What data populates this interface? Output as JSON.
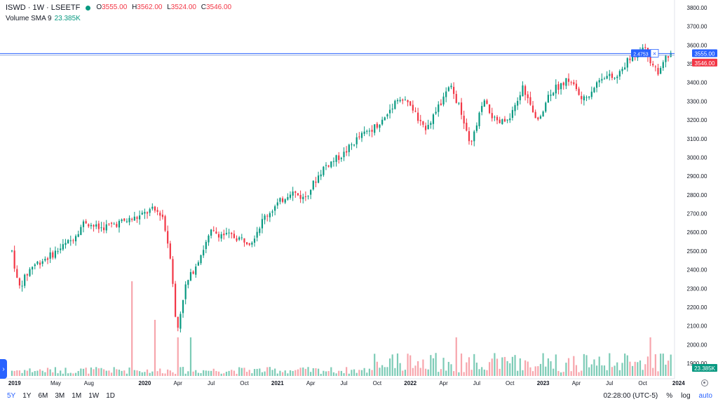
{
  "legend": {
    "symbol": "ISWD · 1W · LSEETF",
    "open_label": "O",
    "open": "3555.00",
    "high_label": "H",
    "high": "3562.00",
    "low_label": "L",
    "low": "3524.00",
    "close_label": "C",
    "close": "3546.00",
    "indicator": "Volume SMA 9",
    "indicator_value": "23.385K"
  },
  "chart_data": {
    "type": "candlestick",
    "y_ticks": [
      1900,
      2000,
      2100,
      2200,
      2300,
      2400,
      2500,
      2600,
      2700,
      2800,
      2900,
      3000,
      3100,
      3200,
      3300,
      3400,
      3500,
      3600,
      3700,
      3800
    ],
    "x_labels": [
      "2019",
      "May",
      "Aug",
      "2020",
      "Apr",
      "Jul",
      "Oct",
      "2021",
      "Apr",
      "Jul",
      "Oct",
      "2022",
      "Apr",
      "Jul",
      "Oct",
      "2023",
      "Apr",
      "Jul",
      "Oct",
      "2024"
    ],
    "ylim": [
      1800,
      3820
    ],
    "price_series_anchors": [
      [
        2019.0,
        2500
      ],
      [
        2019.05,
        2300
      ],
      [
        2019.15,
        2420
      ],
      [
        2019.3,
        2480
      ],
      [
        2019.45,
        2560
      ],
      [
        2019.55,
        2660
      ],
      [
        2019.65,
        2620
      ],
      [
        2019.8,
        2650
      ],
      [
        2019.95,
        2680
      ],
      [
        2020.05,
        2720
      ],
      [
        2020.13,
        2700
      ],
      [
        2020.2,
        2450
      ],
      [
        2020.24,
        2050
      ],
      [
        2020.3,
        2300
      ],
      [
        2020.4,
        2450
      ],
      [
        2020.5,
        2600
      ],
      [
        2020.65,
        2580
      ],
      [
        2020.8,
        2550
      ],
      [
        2020.9,
        2680
      ],
      [
        2021.0,
        2750
      ],
      [
        2021.1,
        2820
      ],
      [
        2021.2,
        2780
      ],
      [
        2021.35,
        2950
      ],
      [
        2021.5,
        3020
      ],
      [
        2021.6,
        3100
      ],
      [
        2021.7,
        3150
      ],
      [
        2021.8,
        3200
      ],
      [
        2021.9,
        3320
      ],
      [
        2022.0,
        3280
      ],
      [
        2022.1,
        3150
      ],
      [
        2022.2,
        3250
      ],
      [
        2022.3,
        3380
      ],
      [
        2022.38,
        3250
      ],
      [
        2022.45,
        3050
      ],
      [
        2022.55,
        3300
      ],
      [
        2022.65,
        3180
      ],
      [
        2022.75,
        3200
      ],
      [
        2022.85,
        3380
      ],
      [
        2022.95,
        3180
      ],
      [
        2023.05,
        3350
      ],
      [
        2023.2,
        3420
      ],
      [
        2023.3,
        3300
      ],
      [
        2023.45,
        3440
      ],
      [
        2023.55,
        3420
      ],
      [
        2023.62,
        3500
      ],
      [
        2023.7,
        3560
      ],
      [
        2023.75,
        3600
      ],
      [
        2023.82,
        3500
      ],
      [
        2023.88,
        3450
      ],
      [
        2023.92,
        3530
      ],
      [
        2023.97,
        3546
      ]
    ],
    "volume_spikes": [
      {
        "date": 2019.9,
        "volume_label": "very high",
        "color": "red"
      },
      {
        "date": 2020.07,
        "volume_label": "high",
        "color": "red"
      },
      {
        "date": 2020.25,
        "volume_label": "medium",
        "color": "red"
      },
      {
        "date": 2020.35,
        "volume_label": "medium",
        "color": "red"
      },
      {
        "date": 2022.35,
        "volume_label": "medium",
        "color": "green"
      },
      {
        "date": 2023.8,
        "volume_label": "medium",
        "color": "red"
      }
    ],
    "price_line_ask": 3555.0,
    "price_line_bid": 3546.0,
    "marker_label": "2.4753",
    "volume_sma_label": "23.385K",
    "colors": {
      "up": "#089981",
      "down": "#f23645",
      "up_vol": "#7ccbb6",
      "down_vol": "#f7a5ac",
      "line": "#2962ff"
    }
  },
  "price_labels": {
    "ask": "3555.00",
    "bid": "3546.00",
    "marker": "2.4753",
    "volume": "23.385K"
  },
  "bottom": {
    "ranges": [
      "5Y",
      "1Y",
      "6M",
      "3M",
      "1M",
      "1W",
      "1D"
    ],
    "active_range": "5Y",
    "time": "02:28:00 (UTC-5)",
    "percent": "%",
    "log": "log",
    "auto": "auto"
  }
}
